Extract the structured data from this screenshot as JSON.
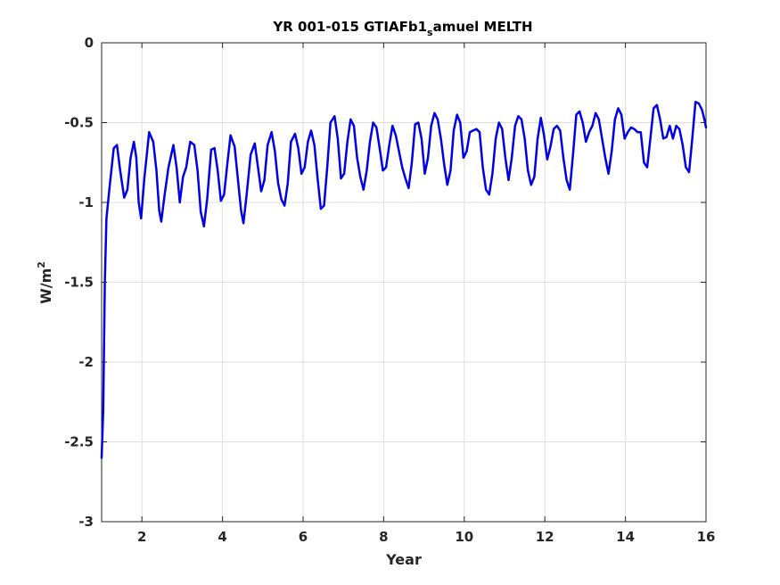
{
  "chart_data": {
    "type": "line",
    "title": "YR 001-015 GTIAFb1",
    "title_subscript": "s",
    "title_rest": "amuel MELTH",
    "xlabel": "Year",
    "ylabel": "W/m",
    "ylabel_superscript": "2",
    "xlim": [
      1,
      16
    ],
    "ylim": [
      -3,
      0
    ],
    "xticks": [
      2,
      4,
      6,
      8,
      10,
      12,
      14,
      16
    ],
    "yticks": [
      -3,
      -2.5,
      -2,
      -1.5,
      -1,
      -0.5,
      0
    ],
    "xtick_labels": [
      "2",
      "4",
      "6",
      "8",
      "10",
      "12",
      "14",
      "16"
    ],
    "ytick_labels": [
      "-3",
      "-2.5",
      "-2",
      "-1.5",
      "-1",
      "-0.5",
      "0"
    ],
    "grid": true,
    "line_color": "#0000e6",
    "series": [
      {
        "values": [
          [
            1.0,
            -2.6
          ],
          [
            1.04,
            -2.3
          ],
          [
            1.08,
            -1.5
          ],
          [
            1.12,
            -1.1
          ],
          [
            1.2,
            -0.9
          ],
          [
            1.3,
            -0.66
          ],
          [
            1.38,
            -0.64
          ],
          [
            1.46,
            -0.8
          ],
          [
            1.56,
            -0.97
          ],
          [
            1.64,
            -0.92
          ],
          [
            1.72,
            -0.72
          ],
          [
            1.8,
            -0.62
          ],
          [
            1.86,
            -0.72
          ],
          [
            1.92,
            -1.0
          ],
          [
            1.98,
            -1.1
          ],
          [
            2.06,
            -0.85
          ],
          [
            2.18,
            -0.56
          ],
          [
            2.28,
            -0.62
          ],
          [
            2.36,
            -0.8
          ],
          [
            2.43,
            -1.05
          ],
          [
            2.48,
            -1.12
          ],
          [
            2.56,
            -0.96
          ],
          [
            2.66,
            -0.78
          ],
          [
            2.78,
            -0.64
          ],
          [
            2.86,
            -0.78
          ],
          [
            2.94,
            -1.0
          ],
          [
            3.02,
            -0.84
          ],
          [
            3.1,
            -0.78
          ],
          [
            3.2,
            -0.62
          ],
          [
            3.3,
            -0.64
          ],
          [
            3.38,
            -0.8
          ],
          [
            3.46,
            -1.06
          ],
          [
            3.54,
            -1.15
          ],
          [
            3.62,
            -0.98
          ],
          [
            3.72,
            -0.67
          ],
          [
            3.8,
            -0.66
          ],
          [
            3.88,
            -0.8
          ],
          [
            3.96,
            -0.99
          ],
          [
            4.04,
            -0.95
          ],
          [
            4.12,
            -0.76
          ],
          [
            4.2,
            -0.58
          ],
          [
            4.3,
            -0.65
          ],
          [
            4.38,
            -0.85
          ],
          [
            4.46,
            -1.05
          ],
          [
            4.52,
            -1.13
          ],
          [
            4.6,
            -0.95
          ],
          [
            4.7,
            -0.7
          ],
          [
            4.8,
            -0.63
          ],
          [
            4.88,
            -0.78
          ],
          [
            4.96,
            -0.93
          ],
          [
            5.04,
            -0.86
          ],
          [
            5.12,
            -0.64
          ],
          [
            5.22,
            -0.56
          ],
          [
            5.3,
            -0.68
          ],
          [
            5.38,
            -0.88
          ],
          [
            5.46,
            -0.98
          ],
          [
            5.54,
            -1.02
          ],
          [
            5.62,
            -0.88
          ],
          [
            5.7,
            -0.62
          ],
          [
            5.8,
            -0.57
          ],
          [
            5.88,
            -0.66
          ],
          [
            5.96,
            -0.82
          ],
          [
            6.04,
            -0.78
          ],
          [
            6.12,
            -0.62
          ],
          [
            6.2,
            -0.55
          ],
          [
            6.28,
            -0.64
          ],
          [
            6.36,
            -0.85
          ],
          [
            6.44,
            -1.04
          ],
          [
            6.52,
            -1.02
          ],
          [
            6.6,
            -0.78
          ],
          [
            6.68,
            -0.5
          ],
          [
            6.78,
            -0.46
          ],
          [
            6.86,
            -0.6
          ],
          [
            6.94,
            -0.85
          ],
          [
            7.02,
            -0.82
          ],
          [
            7.1,
            -0.62
          ],
          [
            7.18,
            -0.48
          ],
          [
            7.26,
            -0.52
          ],
          [
            7.34,
            -0.72
          ],
          [
            7.42,
            -0.84
          ],
          [
            7.5,
            -0.92
          ],
          [
            7.58,
            -0.8
          ],
          [
            7.66,
            -0.62
          ],
          [
            7.74,
            -0.5
          ],
          [
            7.82,
            -0.53
          ],
          [
            7.9,
            -0.66
          ],
          [
            7.98,
            -0.8
          ],
          [
            8.06,
            -0.78
          ],
          [
            8.14,
            -0.64
          ],
          [
            8.22,
            -0.52
          ],
          [
            8.3,
            -0.58
          ],
          [
            8.38,
            -0.68
          ],
          [
            8.46,
            -0.78
          ],
          [
            8.54,
            -0.85
          ],
          [
            8.62,
            -0.91
          ],
          [
            8.7,
            -0.75
          ],
          [
            8.78,
            -0.51
          ],
          [
            8.86,
            -0.5
          ],
          [
            8.94,
            -0.6
          ],
          [
            9.02,
            -0.82
          ],
          [
            9.1,
            -0.72
          ],
          [
            9.18,
            -0.52
          ],
          [
            9.26,
            -0.44
          ],
          [
            9.34,
            -0.48
          ],
          [
            9.42,
            -0.6
          ],
          [
            9.5,
            -0.76
          ],
          [
            9.58,
            -0.89
          ],
          [
            9.66,
            -0.8
          ],
          [
            9.74,
            -0.55
          ],
          [
            9.82,
            -0.45
          ],
          [
            9.9,
            -0.5
          ],
          [
            9.98,
            -0.72
          ],
          [
            10.06,
            -0.68
          ],
          [
            10.14,
            -0.56
          ],
          [
            10.22,
            -0.55
          ],
          [
            10.3,
            -0.54
          ],
          [
            10.38,
            -0.56
          ],
          [
            10.46,
            -0.78
          ],
          [
            10.54,
            -0.92
          ],
          [
            10.62,
            -0.95
          ],
          [
            10.7,
            -0.82
          ],
          [
            10.78,
            -0.6
          ],
          [
            10.86,
            -0.5
          ],
          [
            10.94,
            -0.54
          ],
          [
            11.02,
            -0.72
          ],
          [
            11.1,
            -0.86
          ],
          [
            11.18,
            -0.72
          ],
          [
            11.26,
            -0.52
          ],
          [
            11.34,
            -0.46
          ],
          [
            11.42,
            -0.48
          ],
          [
            11.5,
            -0.6
          ],
          [
            11.58,
            -0.8
          ],
          [
            11.66,
            -0.89
          ],
          [
            11.74,
            -0.84
          ],
          [
            11.82,
            -0.6
          ],
          [
            11.9,
            -0.47
          ],
          [
            11.98,
            -0.58
          ],
          [
            12.06,
            -0.73
          ],
          [
            12.14,
            -0.65
          ],
          [
            12.22,
            -0.54
          ],
          [
            12.3,
            -0.52
          ],
          [
            12.38,
            -0.55
          ],
          [
            12.46,
            -0.72
          ],
          [
            12.54,
            -0.86
          ],
          [
            12.62,
            -0.92
          ],
          [
            12.7,
            -0.7
          ],
          [
            12.78,
            -0.45
          ],
          [
            12.86,
            -0.43
          ],
          [
            12.94,
            -0.5
          ],
          [
            13.02,
            -0.62
          ],
          [
            13.1,
            -0.56
          ],
          [
            13.18,
            -0.52
          ],
          [
            13.26,
            -0.44
          ],
          [
            13.34,
            -0.48
          ],
          [
            13.42,
            -0.6
          ],
          [
            13.5,
            -0.72
          ],
          [
            13.58,
            -0.82
          ],
          [
            13.66,
            -0.68
          ],
          [
            13.74,
            -0.48
          ],
          [
            13.82,
            -0.41
          ],
          [
            13.9,
            -0.45
          ],
          [
            13.98,
            -0.6
          ],
          [
            14.06,
            -0.56
          ],
          [
            14.14,
            -0.53
          ],
          [
            14.22,
            -0.54
          ],
          [
            14.3,
            -0.56
          ],
          [
            14.38,
            -0.56
          ],
          [
            14.46,
            -0.75
          ],
          [
            14.54,
            -0.78
          ],
          [
            14.62,
            -0.6
          ],
          [
            14.7,
            -0.41
          ],
          [
            14.78,
            -0.39
          ],
          [
            14.86,
            -0.48
          ],
          [
            14.94,
            -0.6
          ],
          [
            15.02,
            -0.59
          ],
          [
            15.1,
            -0.52
          ],
          [
            15.18,
            -0.6
          ],
          [
            15.26,
            -0.52
          ],
          [
            15.34,
            -0.54
          ],
          [
            15.42,
            -0.64
          ],
          [
            15.5,
            -0.78
          ],
          [
            15.58,
            -0.81
          ],
          [
            15.66,
            -0.6
          ],
          [
            15.74,
            -0.37
          ],
          [
            15.82,
            -0.38
          ],
          [
            15.9,
            -0.42
          ],
          [
            15.96,
            -0.48
          ],
          [
            16.0,
            -0.53
          ]
        ]
      }
    ]
  }
}
